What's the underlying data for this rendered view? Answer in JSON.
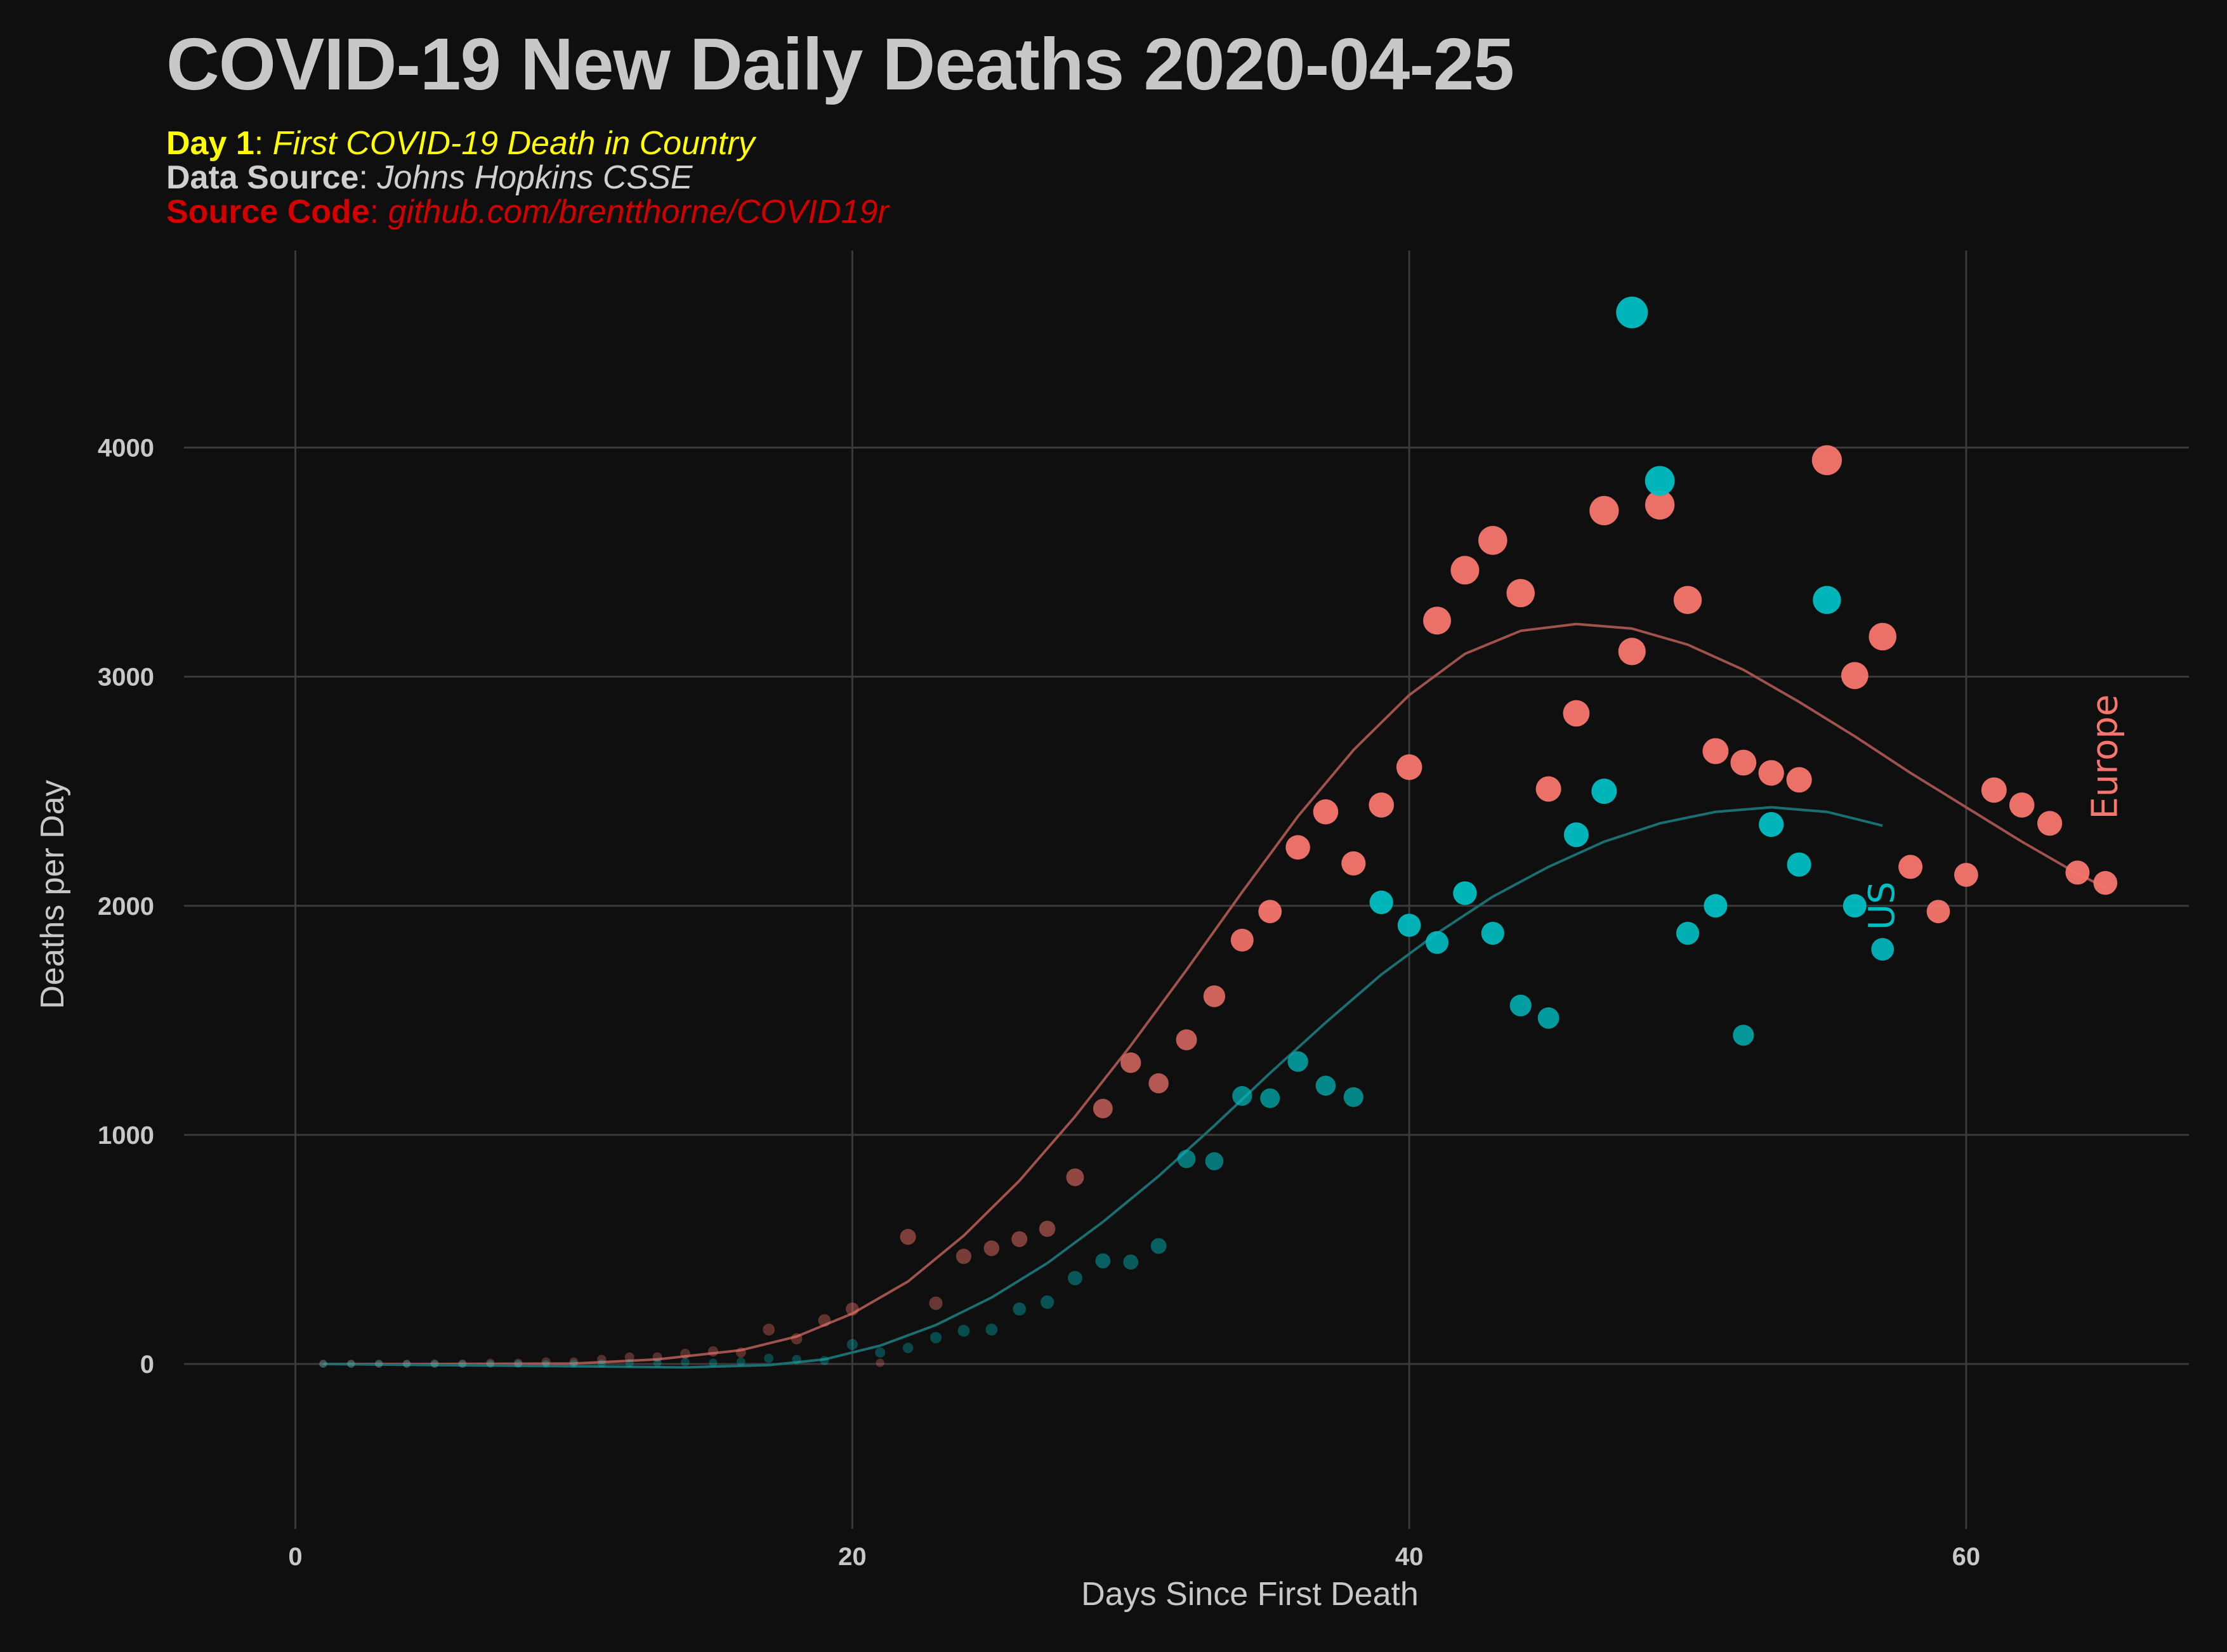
{
  "title": "COVID-19 New Daily Deaths 2020-04-25",
  "subtitle_lines": [
    {
      "key": "Day 1",
      "sep": ": ",
      "value": "First COVID-19 Death in Country",
      "color": "#ffff00"
    },
    {
      "key": "Data Source",
      "sep": ": ",
      "value": "Johns Hopkins CSSE",
      "color": "#cfcfcf"
    },
    {
      "key": "Source Code",
      "sep": ": ",
      "value": "github.com/brentthorne/COVID19r",
      "color": "#d40000"
    }
  ],
  "chart_data": {
    "type": "scatter",
    "xlabel": "Days Since First Death",
    "ylabel": "Deaths per Day",
    "xlim": [
      -4,
      68
    ],
    "ylim": [
      -720,
      4860
    ],
    "x_ticks": [
      0,
      20,
      40,
      60
    ],
    "x_tick_labels": [
      "0",
      "20",
      "40",
      "60"
    ],
    "y_ticks": [
      0,
      1000,
      2000,
      3000,
      4000
    ],
    "y_tick_labels": [
      "0",
      "1000",
      "2000",
      "3000",
      "4000"
    ],
    "grid": true,
    "legend": "none",
    "background": "#0f0f0f",
    "series": [
      {
        "name": "Europe",
        "color": "#f8766d",
        "smooth_color": "#a0524c",
        "points": [
          [
            1,
            1
          ],
          [
            2,
            1
          ],
          [
            3,
            1
          ],
          [
            4,
            1
          ],
          [
            5,
            2
          ],
          [
            6,
            2
          ],
          [
            7,
            5
          ],
          [
            8,
            5
          ],
          [
            9,
            10
          ],
          [
            10,
            10
          ],
          [
            11,
            20
          ],
          [
            12,
            30
          ],
          [
            13,
            30
          ],
          [
            14,
            45
          ],
          [
            15,
            55
          ],
          [
            16,
            50
          ],
          [
            17,
            150
          ],
          [
            18,
            110
          ],
          [
            19,
            190
          ],
          [
            20,
            240
          ],
          [
            21,
            5
          ],
          [
            22,
            555
          ],
          [
            23,
            265
          ],
          [
            24,
            470
          ],
          [
            25,
            505
          ],
          [
            26,
            545
          ],
          [
            27,
            590
          ],
          [
            28,
            815
          ],
          [
            29,
            1115
          ],
          [
            30,
            1315
          ],
          [
            31,
            1225
          ],
          [
            32,
            1415
          ],
          [
            33,
            1605
          ],
          [
            34,
            1850
          ],
          [
            35,
            1975
          ],
          [
            36,
            2255
          ],
          [
            37,
            2410
          ],
          [
            38,
            2185
          ],
          [
            39,
            2440
          ],
          [
            40,
            2605
          ],
          [
            41,
            3245
          ],
          [
            42,
            3465
          ],
          [
            43,
            3595
          ],
          [
            44,
            3365
          ],
          [
            45,
            2510
          ],
          [
            46,
            2840
          ],
          [
            47,
            3725
          ],
          [
            48,
            3110
          ],
          [
            49,
            3750
          ],
          [
            50,
            3335
          ],
          [
            51,
            2675
          ],
          [
            52,
            2625
          ],
          [
            53,
            2580
          ],
          [
            54,
            2550
          ],
          [
            55,
            3945
          ],
          [
            56,
            3005
          ],
          [
            57,
            3175
          ],
          [
            58,
            2170
          ],
          [
            59,
            1975
          ],
          [
            60,
            2135
          ],
          [
            61,
            2505
          ],
          [
            62,
            2440
          ],
          [
            63,
            2360
          ],
          [
            64,
            2145
          ],
          [
            65,
            2100
          ]
        ],
        "smooth": [
          [
            1,
            0
          ],
          [
            5,
            0
          ],
          [
            10,
            2
          ],
          [
            13,
            20
          ],
          [
            16,
            60
          ],
          [
            18,
            120
          ],
          [
            20,
            220
          ],
          [
            22,
            360
          ],
          [
            24,
            560
          ],
          [
            26,
            800
          ],
          [
            28,
            1080
          ],
          [
            30,
            1390
          ],
          [
            32,
            1720
          ],
          [
            34,
            2060
          ],
          [
            36,
            2390
          ],
          [
            38,
            2680
          ],
          [
            40,
            2920
          ],
          [
            42,
            3100
          ],
          [
            44,
            3200
          ],
          [
            46,
            3230
          ],
          [
            48,
            3210
          ],
          [
            50,
            3140
          ],
          [
            52,
            3030
          ],
          [
            54,
            2890
          ],
          [
            56,
            2740
          ],
          [
            58,
            2580
          ],
          [
            60,
            2430
          ],
          [
            62,
            2280
          ],
          [
            64,
            2140
          ],
          [
            65,
            2080
          ]
        ]
      },
      {
        "name": "US",
        "color": "#00bfc4",
        "smooth_color": "#1a6f72",
        "points": [
          [
            1,
            0
          ],
          [
            2,
            0
          ],
          [
            3,
            0
          ],
          [
            4,
            0
          ],
          [
            5,
            0
          ],
          [
            6,
            0
          ],
          [
            7,
            0
          ],
          [
            8,
            0
          ],
          [
            9,
            0
          ],
          [
            10,
            1
          ],
          [
            11,
            2
          ],
          [
            12,
            3
          ],
          [
            13,
            5
          ],
          [
            14,
            8
          ],
          [
            15,
            5
          ],
          [
            16,
            10
          ],
          [
            17,
            25
          ],
          [
            18,
            20
          ],
          [
            19,
            15
          ],
          [
            20,
            85
          ],
          [
            21,
            50
          ],
          [
            22,
            70
          ],
          [
            23,
            115
          ],
          [
            24,
            145
          ],
          [
            25,
            150
          ],
          [
            26,
            240
          ],
          [
            27,
            270
          ],
          [
            28,
            375
          ],
          [
            29,
            450
          ],
          [
            30,
            445
          ],
          [
            31,
            515
          ],
          [
            32,
            895
          ],
          [
            33,
            885
          ],
          [
            34,
            1170
          ],
          [
            35,
            1160
          ],
          [
            36,
            1320
          ],
          [
            37,
            1215
          ],
          [
            38,
            1165
          ],
          [
            39,
            2015
          ],
          [
            40,
            1915
          ],
          [
            41,
            1840
          ],
          [
            42,
            2055
          ],
          [
            43,
            1880
          ],
          [
            44,
            1565
          ],
          [
            45,
            1510
          ],
          [
            46,
            2310
          ],
          [
            47,
            2500
          ],
          [
            48,
            4590
          ],
          [
            49,
            3855
          ],
          [
            50,
            1880
          ],
          [
            51,
            2000
          ],
          [
            52,
            1435
          ],
          [
            53,
            2355
          ],
          [
            54,
            2180
          ],
          [
            55,
            3335
          ],
          [
            56,
            2000
          ],
          [
            57,
            1810
          ]
        ],
        "smooth": [
          [
            1,
            0
          ],
          [
            5,
            -5
          ],
          [
            10,
            -10
          ],
          [
            14,
            -15
          ],
          [
            17,
            -5
          ],
          [
            19,
            20
          ],
          [
            21,
            80
          ],
          [
            23,
            170
          ],
          [
            25,
            290
          ],
          [
            27,
            440
          ],
          [
            29,
            620
          ],
          [
            31,
            820
          ],
          [
            33,
            1040
          ],
          [
            35,
            1270
          ],
          [
            37,
            1490
          ],
          [
            39,
            1700
          ],
          [
            41,
            1880
          ],
          [
            43,
            2040
          ],
          [
            45,
            2170
          ],
          [
            47,
            2280
          ],
          [
            49,
            2360
          ],
          [
            51,
            2410
          ],
          [
            53,
            2430
          ],
          [
            55,
            2410
          ],
          [
            57,
            2350
          ]
        ]
      }
    ],
    "annotations": [
      {
        "text": "Europe",
        "x": 65,
        "y": 2650,
        "color": "#f8766d",
        "rotation": -90
      },
      {
        "text": "US",
        "x": 57,
        "y": 2000,
        "color": "#00bfc4",
        "rotation": -90
      }
    ]
  }
}
